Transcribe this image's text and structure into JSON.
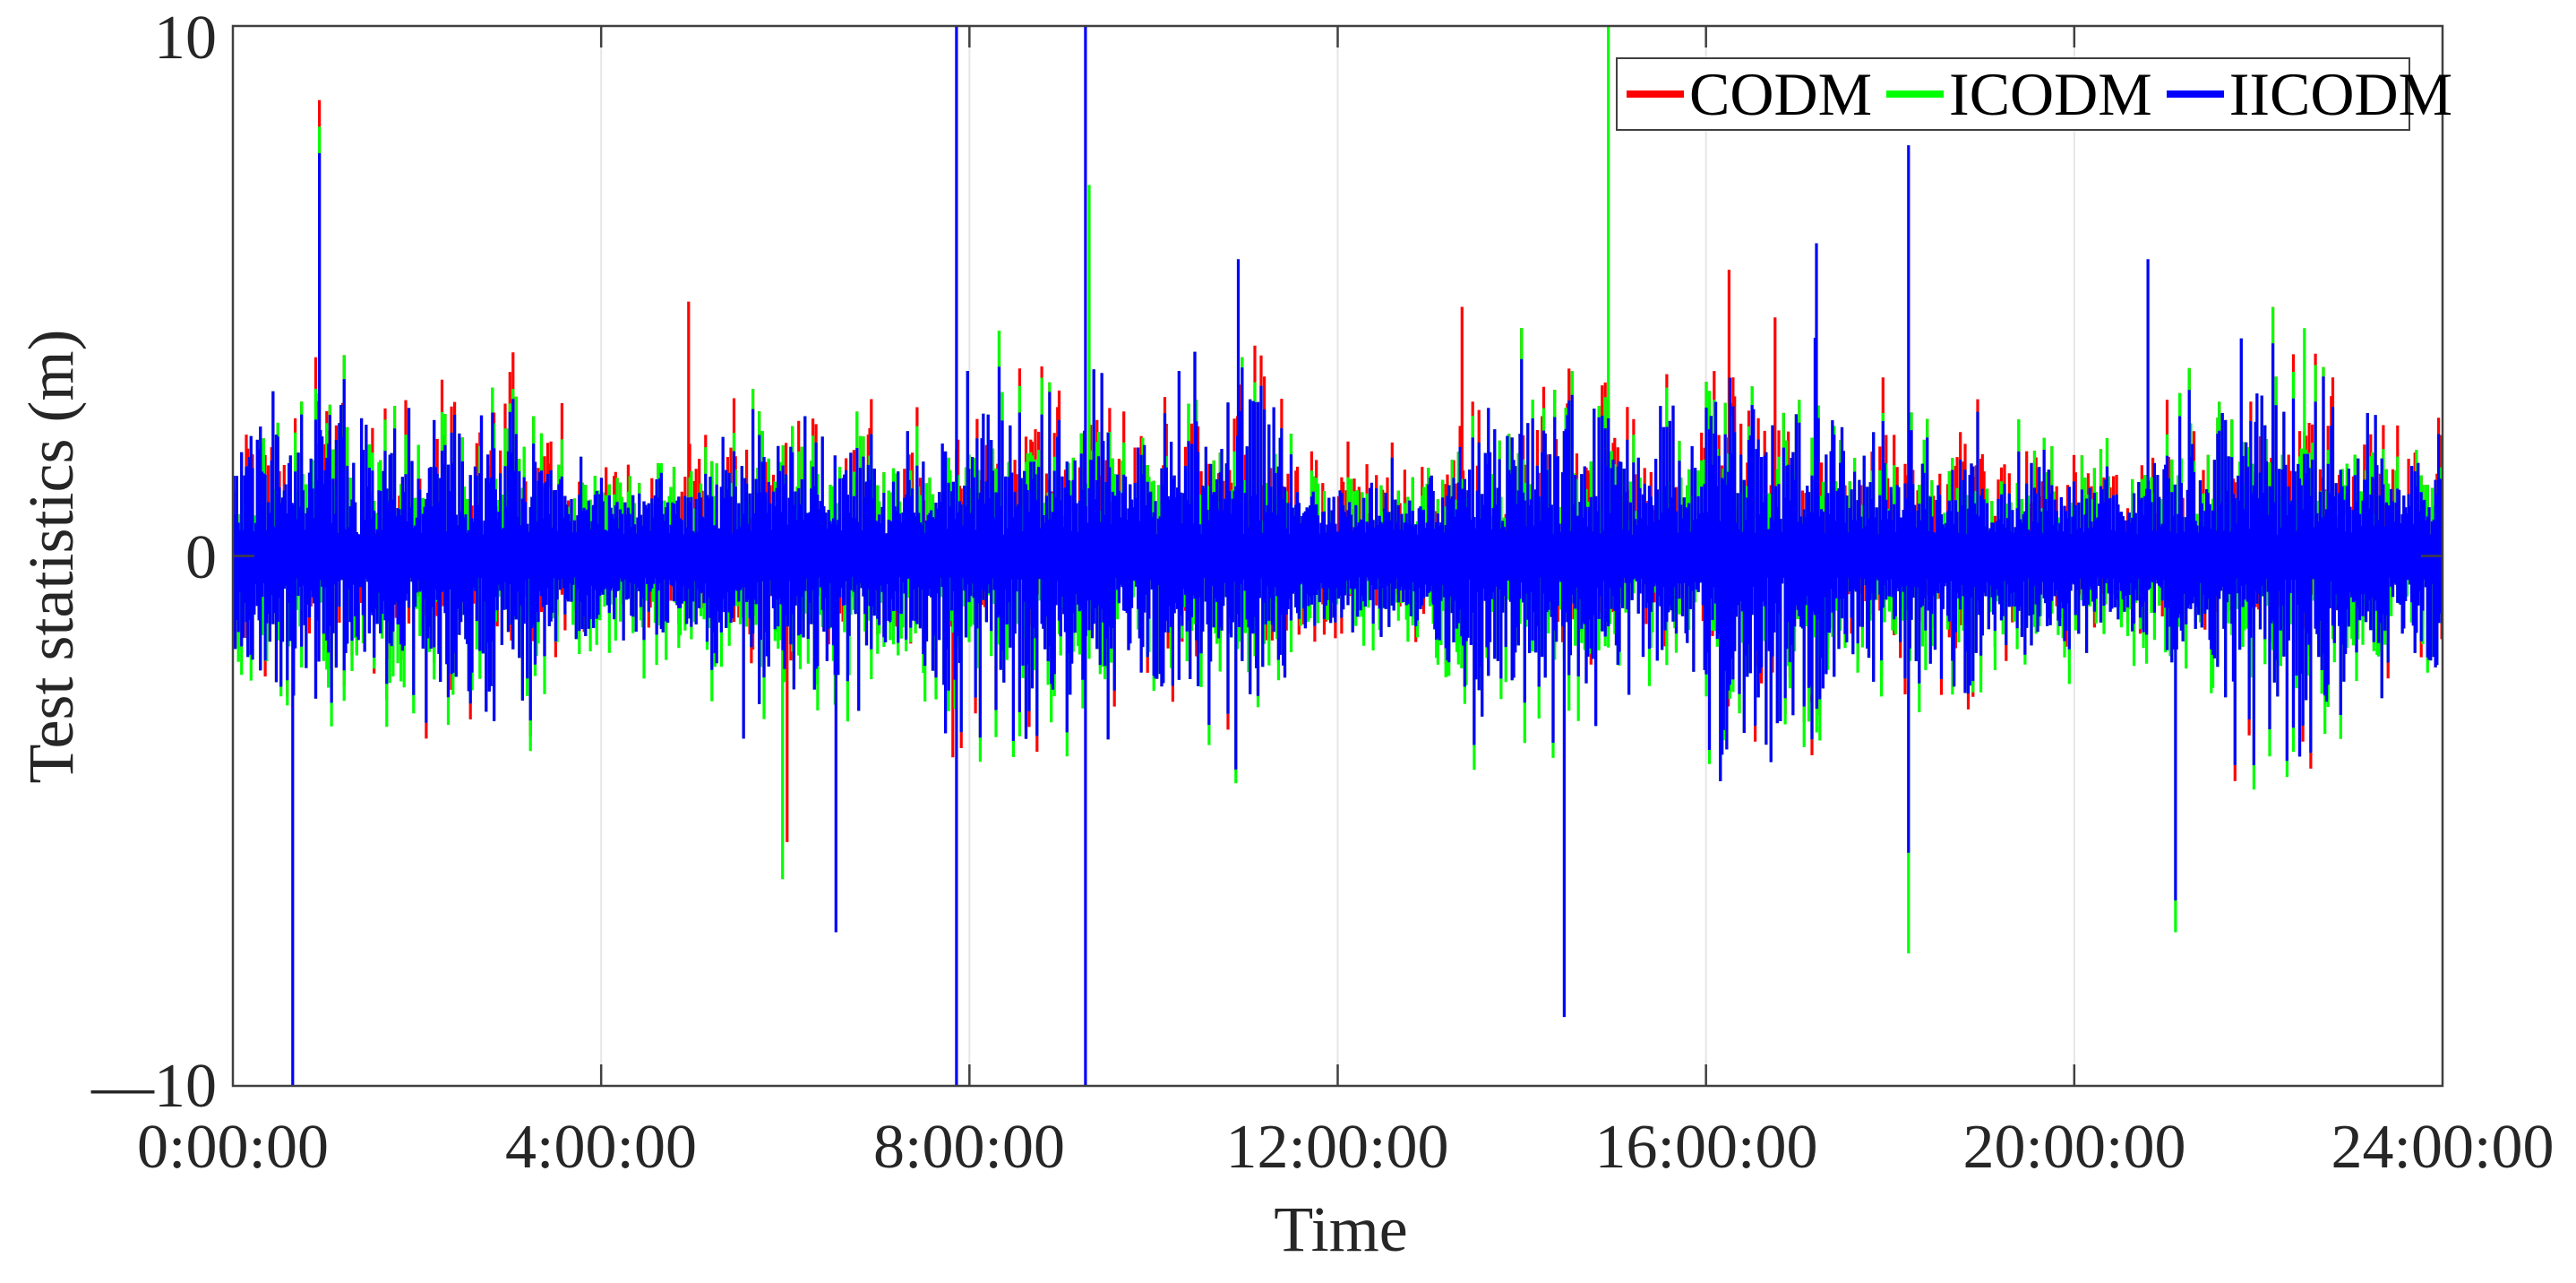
{
  "chart_data": {
    "type": "line",
    "title": "",
    "xlabel": "Time",
    "ylabel": "Test statistics (m)",
    "xlim_hours": [
      0,
      24
    ],
    "ylim": [
      -10,
      10
    ],
    "xticks": [
      "0:00:00",
      "4:00:00",
      "8:00:00",
      "12:00:00",
      "16:00:00",
      "20:00:00",
      "24:00:00"
    ],
    "yticks": [
      "—10",
      "0",
      "10"
    ],
    "grid": "vertical only (light gray at x ticks)",
    "legend_position": "top-right, horizontal",
    "series": [
      {
        "name": "CODM",
        "color": "#ff0000"
      },
      {
        "name": "ICODM",
        "color": "#00ff00"
      },
      {
        "name": "IICODM",
        "color": "#0000ff"
      }
    ],
    "description": "Dense noisy time series of test statistics for three methods over 24 h, drawn in order CODM (red), ICODM (green), IICODM (blue) on top; core band roughly within ±1.5 m with excursions to ±4 m and isolated outlier spikes.",
    "core_band_amplitude_m": 1.5,
    "typical_excursion_m": 3.5,
    "notable_points": [
      {
        "time_h": 0.65,
        "series": "IICODM",
        "value": -10.0,
        "note": "clipped at axis"
      },
      {
        "time_h": 0.94,
        "series": "CODM",
        "value": 8.6
      },
      {
        "time_h": 0.94,
        "series": "ICODM",
        "value": 8.1
      },
      {
        "time_h": 0.94,
        "series": "IICODM",
        "value": 7.6
      },
      {
        "time_h": 4.95,
        "series": "CODM",
        "value": 4.8
      },
      {
        "time_h": 5.97,
        "series": "ICODM",
        "value": -6.1
      },
      {
        "time_h": 6.02,
        "series": "CODM",
        "value": -5.4
      },
      {
        "time_h": 6.55,
        "series": "IICODM",
        "value": -7.1
      },
      {
        "time_h": 7.86,
        "series": "IICODM",
        "value": 10.0,
        "note": "clipped at axis"
      },
      {
        "time_h": 7.86,
        "series": "IICODM",
        "value": -10.0,
        "note": "clipped at axis"
      },
      {
        "time_h": 7.82,
        "series": "CODM",
        "value": -3.8
      },
      {
        "time_h": 9.26,
        "series": "IICODM",
        "value": 10.0,
        "note": "clipped at axis"
      },
      {
        "time_h": 9.26,
        "series": "IICODM",
        "value": -10.0,
        "note": "clipped at axis"
      },
      {
        "time_h": 9.3,
        "series": "ICODM",
        "value": 7.0
      },
      {
        "time_h": 10.92,
        "series": "IICODM",
        "value": 5.6
      },
      {
        "time_h": 13.35,
        "series": "CODM",
        "value": 4.7
      },
      {
        "time_h": 14.46,
        "series": "IICODM",
        "value": -8.7
      },
      {
        "time_h": 14.94,
        "series": "ICODM",
        "value": 10.0,
        "note": "clipped at axis"
      },
      {
        "time_h": 16.25,
        "series": "CODM",
        "value": 5.4
      },
      {
        "time_h": 16.75,
        "series": "CODM",
        "value": 4.5
      },
      {
        "time_h": 17.2,
        "series": "IICODM",
        "value": 5.9
      },
      {
        "time_h": 18.2,
        "series": "IICODM",
        "value": 7.75
      },
      {
        "time_h": 18.2,
        "series": "ICODM",
        "value": -7.5
      },
      {
        "time_h": 18.2,
        "series": "IICODM",
        "value": -5.6
      },
      {
        "time_h": 21.1,
        "series": "ICODM",
        "value": -7.1
      },
      {
        "time_h": 21.1,
        "series": "IICODM",
        "value": -6.5
      },
      {
        "time_h": 20.8,
        "series": "IICODM",
        "value": 5.6
      },
      {
        "time_h": 22.5,
        "series": "ICODM",
        "value": 4.3
      }
    ]
  },
  "axes": {
    "ylabel": "Test statistics (m)",
    "xlabel": "Time",
    "yticks": [
      {
        "label": "10",
        "value": 10
      },
      {
        "label": "0",
        "value": 0
      },
      {
        "label": "—10",
        "value": -10
      }
    ],
    "xticks": [
      {
        "label": "0:00:00",
        "hour": 0
      },
      {
        "label": "4:00:00",
        "hour": 4
      },
      {
        "label": "8:00:00",
        "hour": 8
      },
      {
        "label": "12:00:00",
        "hour": 12
      },
      {
        "label": "16:00:00",
        "hour": 16
      },
      {
        "label": "20:00:00",
        "hour": 20
      },
      {
        "label": "24:00:00",
        "hour": 24
      }
    ]
  },
  "legend": {
    "items": [
      {
        "label": "CODM",
        "color": "#ff0000"
      },
      {
        "label": "ICODM",
        "color": "#00ff00"
      },
      {
        "label": "IICODM",
        "color": "#0000ff"
      }
    ]
  }
}
